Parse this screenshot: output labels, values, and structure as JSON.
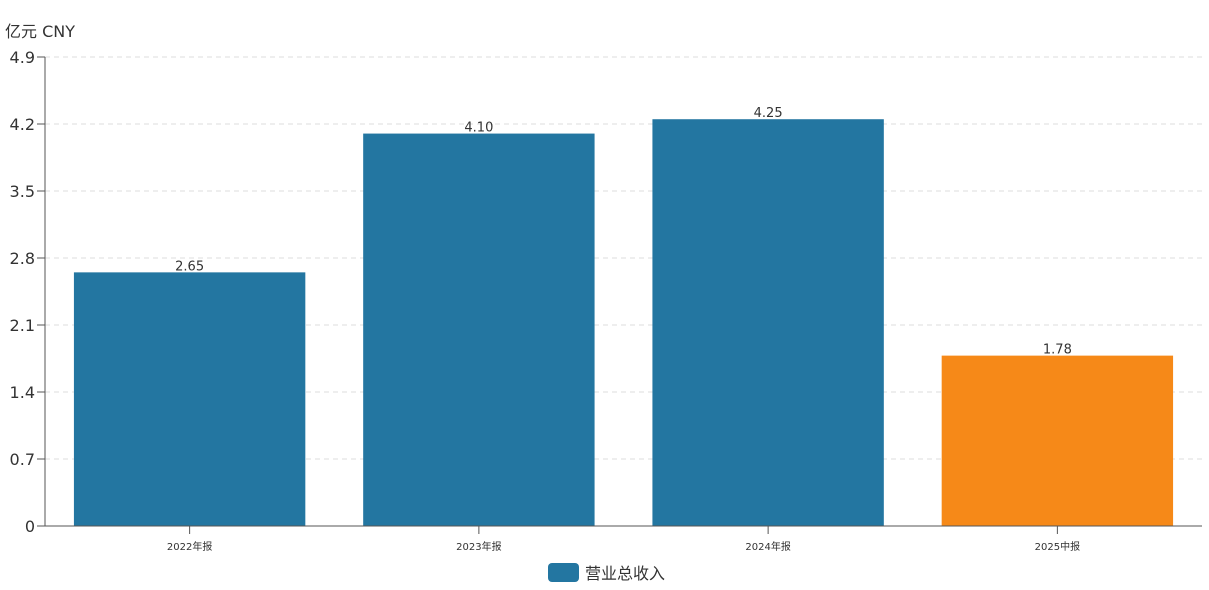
{
  "chart_data": {
    "type": "bar",
    "unit_label": "亿元  CNY",
    "categories": [
      "2022年报",
      "2023年报",
      "2024年报",
      "2025中报"
    ],
    "series": [
      {
        "name": "营业总收入",
        "values": [
          2.65,
          4.1,
          4.25,
          1.78
        ]
      }
    ],
    "data_labels": [
      "2.65",
      "4.10",
      "4.25",
      "1.78"
    ],
    "bar_colors": [
      "#2376a1",
      "#2376a1",
      "#2376a1",
      "#f68918"
    ],
    "ylim": [
      0,
      4.9
    ],
    "yticks": [
      "0",
      "0.7",
      "1.4",
      "2.1",
      "2.8",
      "3.5",
      "4.2",
      "4.9"
    ],
    "grid": true,
    "legend_position": "bottom"
  }
}
